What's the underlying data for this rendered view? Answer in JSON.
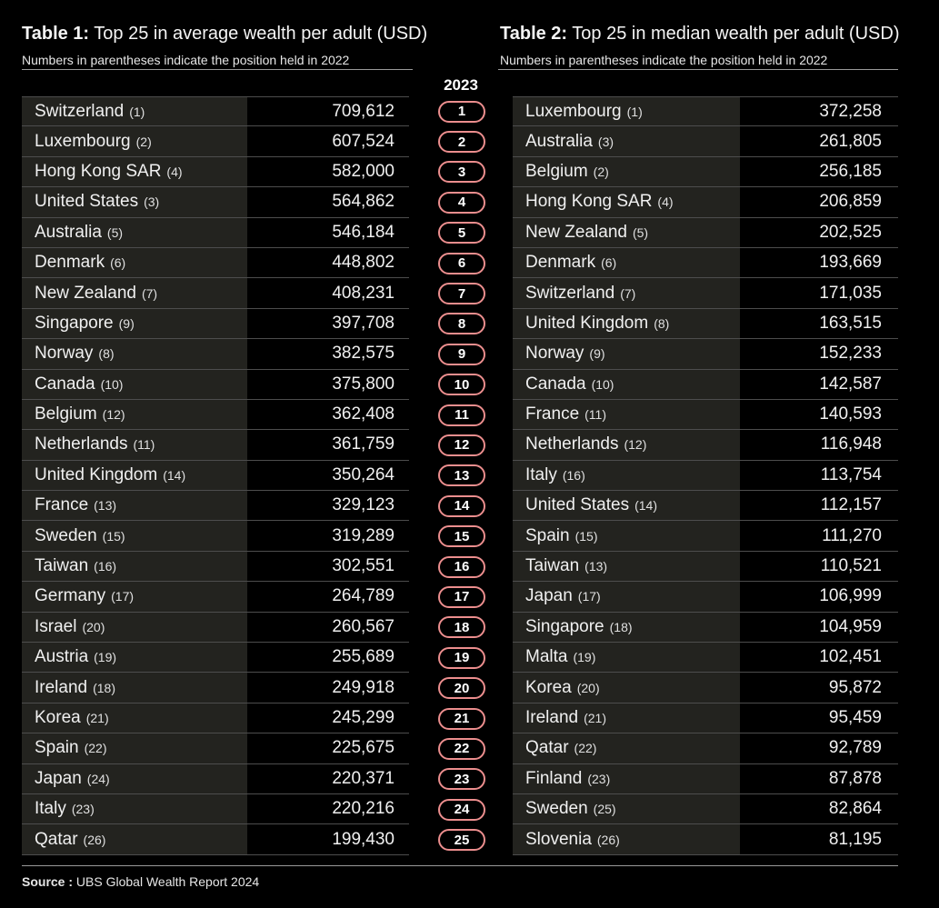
{
  "table1": {
    "title_bold": "Table 1:",
    "title_rest": "Top 25 in average wealth per adult (USD)",
    "subtitle": "Numbers in parentheses indicate the position held in 2022",
    "rows": [
      {
        "country": "Switzerland",
        "prev": "(1)",
        "value": "709,612"
      },
      {
        "country": "Luxembourg",
        "prev": "(2)",
        "value": "607,524"
      },
      {
        "country": "Hong Kong SAR",
        "prev": "(4)",
        "value": "582,000"
      },
      {
        "country": "United States",
        "prev": "(3)",
        "value": "564,862"
      },
      {
        "country": "Australia",
        "prev": "(5)",
        "value": "546,184"
      },
      {
        "country": "Denmark",
        "prev": "(6)",
        "value": "448,802"
      },
      {
        "country": "New Zealand",
        "prev": "(7)",
        "value": "408,231"
      },
      {
        "country": "Singapore",
        "prev": "(9)",
        "value": "397,708"
      },
      {
        "country": "Norway",
        "prev": "(8)",
        "value": "382,575"
      },
      {
        "country": "Canada",
        "prev": "(10)",
        "value": "375,800"
      },
      {
        "country": "Belgium",
        "prev": "(12)",
        "value": "362,408"
      },
      {
        "country": "Netherlands",
        "prev": "(11)",
        "value": "361,759"
      },
      {
        "country": "United Kingdom",
        "prev": "(14)",
        "value": "350,264"
      },
      {
        "country": "France",
        "prev": "(13)",
        "value": "329,123"
      },
      {
        "country": "Sweden",
        "prev": "(15)",
        "value": "319,289"
      },
      {
        "country": "Taiwan",
        "prev": "(16)",
        "value": "302,551"
      },
      {
        "country": "Germany",
        "prev": "(17)",
        "value": "264,789"
      },
      {
        "country": "Israel",
        "prev": "(20)",
        "value": "260,567"
      },
      {
        "country": "Austria",
        "prev": "(19)",
        "value": "255,689"
      },
      {
        "country": "Ireland",
        "prev": "(18)",
        "value": "249,918"
      },
      {
        "country": "Korea",
        "prev": "(21)",
        "value": "245,299"
      },
      {
        "country": "Spain",
        "prev": "(22)",
        "value": "225,675"
      },
      {
        "country": "Japan",
        "prev": "(24)",
        "value": "220,371"
      },
      {
        "country": "Italy",
        "prev": "(23)",
        "value": "220,216"
      },
      {
        "country": "Qatar",
        "prev": "(26)",
        "value": "199,430"
      }
    ]
  },
  "table2": {
    "title_bold": "Table 2:",
    "title_rest": "Top 25 in median wealth per adult (USD)",
    "subtitle": "Numbers in parentheses indicate the position held in 2022",
    "rows": [
      {
        "country": "Luxembourg",
        "prev": "(1)",
        "value": "372,258"
      },
      {
        "country": "Australia",
        "prev": "(3)",
        "value": "261,805"
      },
      {
        "country": "Belgium",
        "prev": "(2)",
        "value": "256,185"
      },
      {
        "country": "Hong Kong SAR",
        "prev": "(4)",
        "value": "206,859"
      },
      {
        "country": "New Zealand",
        "prev": "(5)",
        "value": "202,525"
      },
      {
        "country": "Denmark",
        "prev": "(6)",
        "value": "193,669"
      },
      {
        "country": "Switzerland",
        "prev": "(7)",
        "value": "171,035"
      },
      {
        "country": "United Kingdom",
        "prev": "(8)",
        "value": "163,515"
      },
      {
        "country": "Norway",
        "prev": "(9)",
        "value": "152,233"
      },
      {
        "country": "Canada",
        "prev": "(10)",
        "value": "142,587"
      },
      {
        "country": "France",
        "prev": "(11)",
        "value": "140,593"
      },
      {
        "country": "Netherlands",
        "prev": "(12)",
        "value": "116,948"
      },
      {
        "country": "Italy",
        "prev": "(16)",
        "value": "113,754"
      },
      {
        "country": "United States",
        "prev": "(14)",
        "value": "112,157"
      },
      {
        "country": "Spain",
        "prev": "(15)",
        "value": "111,270"
      },
      {
        "country": "Taiwan",
        "prev": "(13)",
        "value": "110,521"
      },
      {
        "country": "Japan",
        "prev": "(17)",
        "value": "106,999"
      },
      {
        "country": "Singapore",
        "prev": "(18)",
        "value": "104,959"
      },
      {
        "country": "Malta",
        "prev": "(19)",
        "value": "102,451"
      },
      {
        "country": "Korea",
        "prev": "(20)",
        "value": "95,872"
      },
      {
        "country": "Ireland",
        "prev": "(21)",
        "value": "95,459"
      },
      {
        "country": "Qatar",
        "prev": "(22)",
        "value": "92,789"
      },
      {
        "country": "Finland",
        "prev": "(23)",
        "value": "87,878"
      },
      {
        "country": "Sweden",
        "prev": "(25)",
        "value": "82,864"
      },
      {
        "country": "Slovenia",
        "prev": "(26)",
        "value": "81,195"
      }
    ]
  },
  "rank_header": "2023",
  "ranks": [
    "1",
    "2",
    "3",
    "4",
    "5",
    "6",
    "7",
    "8",
    "9",
    "10",
    "11",
    "12",
    "13",
    "14",
    "15",
    "16",
    "17",
    "18",
    "19",
    "20",
    "21",
    "22",
    "23",
    "24",
    "25"
  ],
  "source": {
    "label": "Source :",
    "text": "UBS Global Wealth Report 2024"
  },
  "colors": {
    "background": "#000000",
    "name_cell": "#23231f",
    "pill_border": "#ec8e8e",
    "divider": "#4d4d4d"
  }
}
